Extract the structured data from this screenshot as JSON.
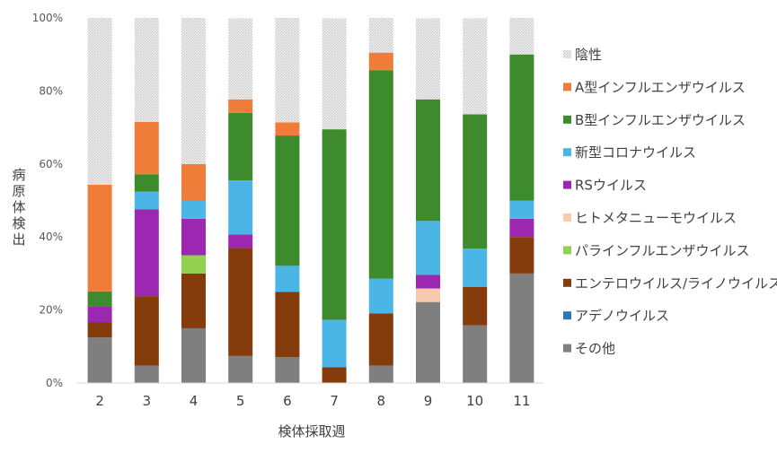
{
  "chart_data": {
    "type": "bar",
    "stacked": true,
    "percent": true,
    "title": "",
    "xlabel": "検体採取週",
    "ylabel": "病原体検出",
    "ylim": [
      0,
      100
    ],
    "yticks": [
      "0%",
      "20%",
      "40%",
      "60%",
      "80%",
      "100%"
    ],
    "categories": [
      "2",
      "3",
      "4",
      "5",
      "6",
      "7",
      "8",
      "9",
      "10",
      "11"
    ],
    "series": [
      {
        "name": "その他",
        "color": "#7f7f7f",
        "values": [
          12.5,
          4.8,
          15.0,
          7.4,
          7.1,
          0.0,
          4.8,
          22.2,
          15.8,
          30.0
        ]
      },
      {
        "name": "アデノウイルス",
        "color": "#2e75b6",
        "values": [
          0,
          0,
          0,
          0,
          0,
          0,
          0,
          0,
          0,
          0
        ]
      },
      {
        "name": "エンテロウイルス/ライノウイルス",
        "color": "#843c0c",
        "values": [
          4.2,
          19.0,
          15.0,
          29.6,
          17.9,
          4.3,
          14.3,
          0.0,
          10.5,
          10.0
        ]
      },
      {
        "name": "パラインフルエンザウイルス",
        "color": "#92d050",
        "values": [
          0,
          0,
          5.0,
          0,
          0,
          0,
          0,
          0,
          0,
          0
        ]
      },
      {
        "name": "ヒトメタニューモウイルス",
        "color": "#f8cbad",
        "values": [
          0,
          0,
          0,
          0,
          0,
          0,
          0,
          3.7,
          0,
          0
        ]
      },
      {
        "name": "RSウイルス",
        "color": "#9c27b0",
        "values": [
          4.2,
          23.8,
          10.0,
          3.7,
          0.0,
          0,
          0,
          3.7,
          0,
          5.0
        ]
      },
      {
        "name": "新型コロナウイルス",
        "color": "#4bb5e6",
        "values": [
          0.0,
          4.8,
          5.0,
          14.8,
          7.1,
          13.0,
          9.5,
          14.8,
          10.5,
          5.0
        ]
      },
      {
        "name": "B型インフルエンザウイルス",
        "color": "#3d8b2c",
        "values": [
          4.2,
          4.8,
          0.0,
          18.5,
          35.7,
          52.2,
          57.1,
          33.3,
          36.8,
          40.0
        ]
      },
      {
        "name": "A型インフルエンザウイルス",
        "color": "#f07c3a",
        "values": [
          29.2,
          14.3,
          10.0,
          3.7,
          3.6,
          0.0,
          4.8,
          0.0,
          0.0,
          0.0
        ]
      },
      {
        "name": "陰性",
        "color": "#d9d9d9",
        "values": [
          45.8,
          28.6,
          40.0,
          22.2,
          28.6,
          30.4,
          9.5,
          22.2,
          26.3,
          10.0
        ]
      }
    ],
    "legend": [
      "陰性",
      "A型インフルエンザウイルス",
      "B型インフルエンザウイルス",
      "新型コロナウイルス",
      "RSウイルス",
      "ヒトメタニューモウイルス",
      "パラインフルエンザウイルス",
      "エンテロウイルス/ライノウイルス",
      "アデノウイルス",
      "その他"
    ],
    "legend_position": "right",
    "grid": false
  }
}
